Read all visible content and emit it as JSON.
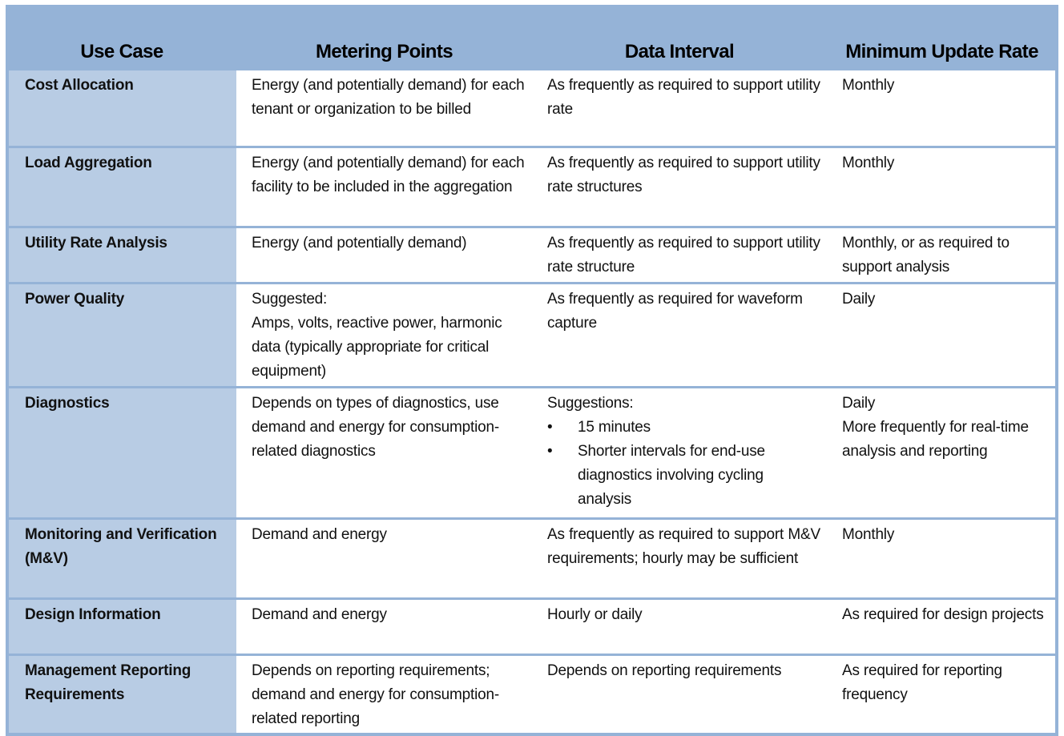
{
  "headers": [
    "Use Case",
    "Metering Points",
    "Data Interval",
    "Minimum Update Rate"
  ],
  "rows": [
    {
      "use_case": "Cost Allocation",
      "metering": "Energy (and potentially demand) for each tenant or organization to be billed",
      "interval": "As frequently as required to support utility rate",
      "rate": "Monthly"
    },
    {
      "use_case": "Load Aggregation",
      "metering": "Energy (and potentially demand) for each facility to be included in the aggregation",
      "interval": "As frequently as required to support utility rate structures",
      "rate": "Monthly"
    },
    {
      "use_case": "Utility Rate Analysis",
      "metering": "Energy (and potentially demand)",
      "interval": "As frequently as required to support utility rate structure",
      "rate": "Monthly, or as required to support analysis"
    },
    {
      "use_case": "Power Quality",
      "metering": "Suggested:",
      "metering2": "Amps, volts, reactive power, harmonic data (typically appropriate for critical equipment)",
      "interval": "As frequently as required for waveform capture",
      "rate": "Daily"
    },
    {
      "use_case": "Diagnostics",
      "metering": "Depends on types of diagnostics, use demand and energy for consumption-related diagnostics",
      "interval": "Suggestions:",
      "bullets": [
        "15 minutes",
        "Shorter intervals for end-use diagnostics involving cycling analysis"
      ],
      "rate": "Daily",
      "rate2": "More frequently for real-time analysis and reporting"
    },
    {
      "use_case": "Monitoring and Verification (M&V)",
      "metering": "Demand and energy",
      "interval": "As frequently as required to support M&V requirements; hourly may be sufficient",
      "rate": "Monthly"
    },
    {
      "use_case": "Design Information",
      "metering": "Demand and energy",
      "interval": "Hourly or daily",
      "rate": "As required for design projects"
    },
    {
      "use_case": "Management Reporting Requirements",
      "metering": "Depends on reporting requirements; demand and energy for consumption-related reporting",
      "interval": "Depends on reporting requirements",
      "rate": "As required for reporting frequency"
    }
  ],
  "colors": {
    "header_bg": "#95b3d7",
    "first_col_bg": "#b8cce4"
  }
}
